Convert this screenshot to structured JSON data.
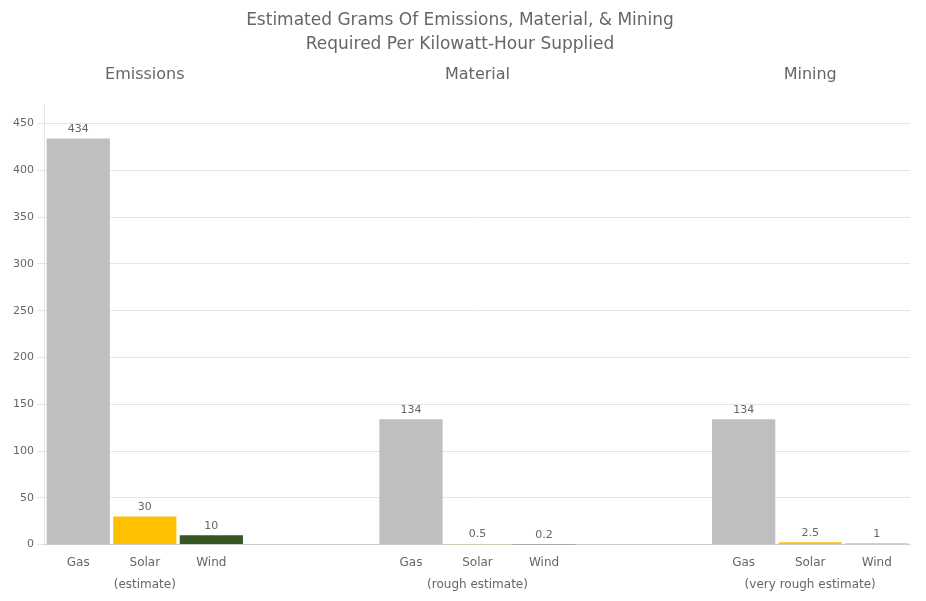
{
  "chart_data": {
    "type": "bar",
    "title": "Estimated Grams Of Emissions, Material, & Mining",
    "subtitle": "Required Per Kilowatt-Hour Supplied",
    "groups": [
      {
        "label": "Emissions",
        "sublabel": "(estimate)",
        "categories": [
          "Gas",
          "Solar",
          "Wind"
        ],
        "values": [
          434,
          30,
          10
        ],
        "colors": [
          "#bfbfbf",
          "#ffc000",
          "#375623"
        ]
      },
      {
        "label": "Material",
        "sublabel": "(rough estimate)",
        "categories": [
          "Gas",
          "Solar",
          "Wind"
        ],
        "values": [
          134,
          0.5,
          0.2
        ],
        "colors": [
          "#bfbfbf",
          "#ffc000",
          "#375623"
        ]
      },
      {
        "label": "Mining",
        "sublabel": "(very rough estimate)",
        "categories": [
          "Gas",
          "Solar",
          "Wind"
        ],
        "values": [
          134,
          2.5,
          1
        ],
        "colors": [
          "#bfbfbf",
          "#ffc000",
          "#375623"
        ]
      }
    ],
    "ylim": [
      0,
      470
    ],
    "yticks": [
      0,
      50,
      100,
      150,
      200,
      250,
      300,
      350,
      400,
      450
    ],
    "grid": true,
    "data_labels": true
  }
}
